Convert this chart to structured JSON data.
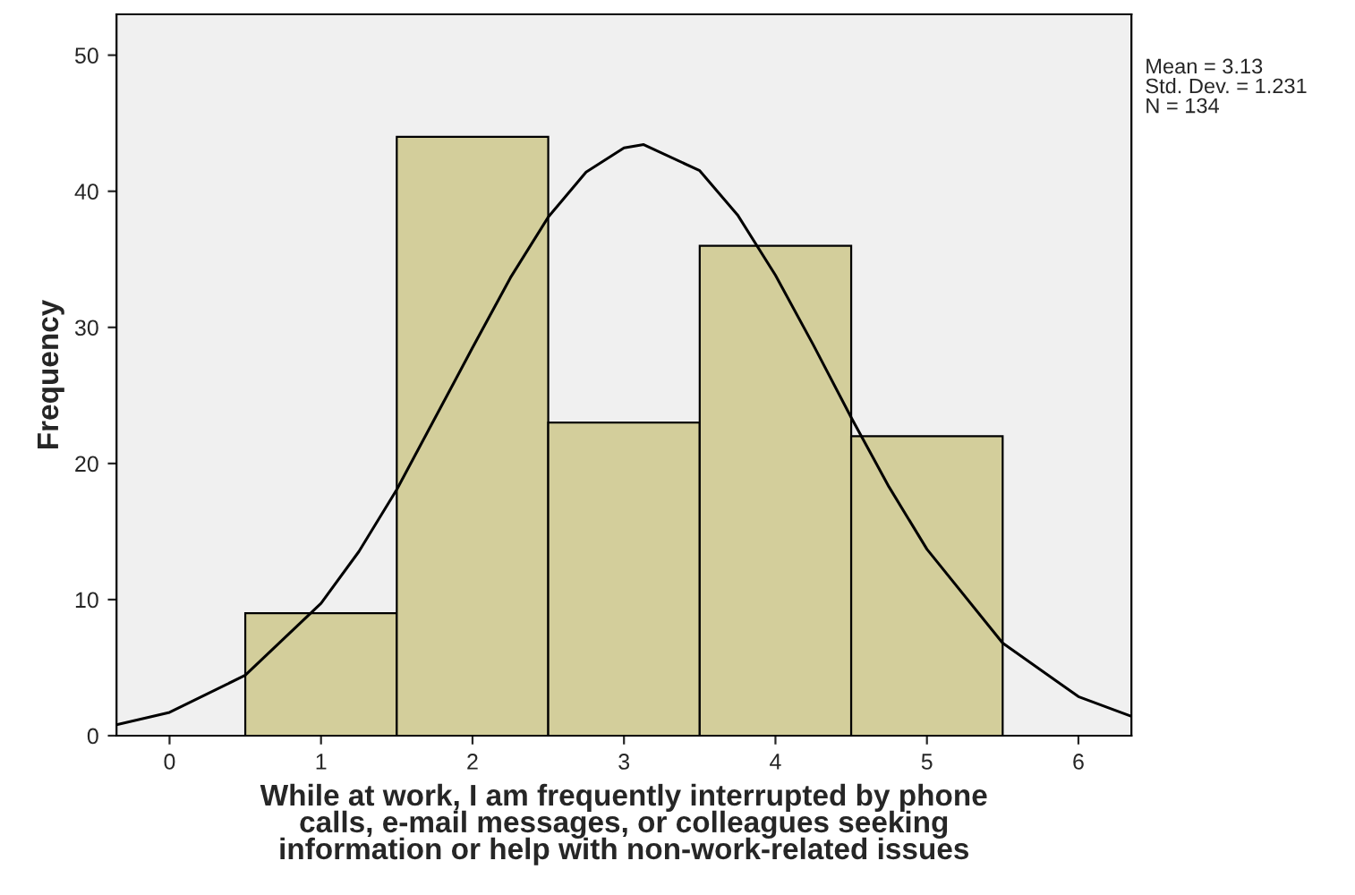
{
  "chart_data": {
    "type": "histogram",
    "bins": [
      0.5,
      1.5,
      2.5,
      3.5,
      4.5,
      5.5
    ],
    "values": [
      9,
      44,
      23,
      36,
      22
    ],
    "color": "#d3ce9b",
    "series": [
      {
        "type": "line",
        "color": "#000000",
        "x": [
          -0.35,
          0,
          0.5,
          1,
          1.25,
          1.5,
          2,
          2.25,
          2.5,
          2.75,
          3,
          3.13,
          3.5,
          3.75,
          4,
          4.25,
          4.5,
          4.75,
          5,
          5.5,
          6,
          6.35
        ],
        "values": [
          0.8,
          1.71,
          4.44,
          9.72,
          13.53,
          18.08,
          28.5,
          33.64,
          38.1,
          41.41,
          43.19,
          43.43,
          41.51,
          38.26,
          33.83,
          28.71,
          23.38,
          18.27,
          13.7,
          6.81,
          2.87,
          1.42
        ]
      }
    ],
    "xlabel": "While at work, I am frequently interrupted by phone\ncalls, e-mail messages, or colleagues seeking\ninformation or help with non-work-related issues",
    "ylabel": "Frequency",
    "annotations": [
      "Mean = 3.13\nStd. Dev. = 1.231\nN = 134"
    ],
    "xlim": [
      -0.35,
      6.35
    ],
    "ylim": [
      0,
      53
    ],
    "xticks": [
      0,
      1,
      2,
      3,
      4,
      5,
      6
    ],
    "yticks": [
      0,
      10,
      20,
      30,
      40,
      50
    ],
    "grid": false,
    "legend": false
  }
}
